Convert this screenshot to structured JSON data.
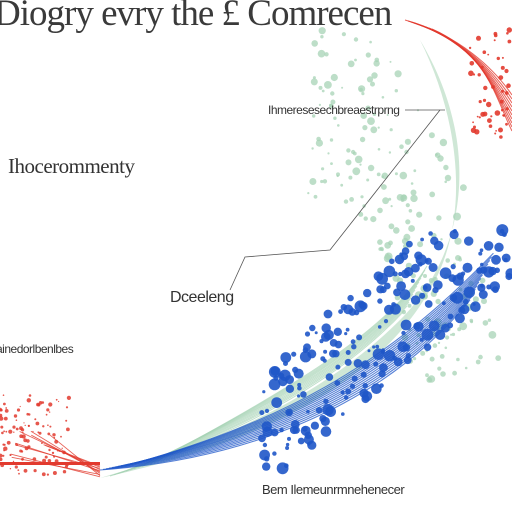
{
  "title": "Diogry evry the £ Comrecen",
  "labels": {
    "top_right": "Ihmeresesechbreaestrprng",
    "left_upper": "Ihocerommenty",
    "center": "Dceeleng",
    "left_lower": "ainedorlbenlbes",
    "bottom": "Bem Ilemeunrmnehenecer"
  },
  "colors": {
    "green": "#a7d3b5",
    "blue": "#1f57c8",
    "red": "#e23a2e",
    "text": "#333333"
  }
}
